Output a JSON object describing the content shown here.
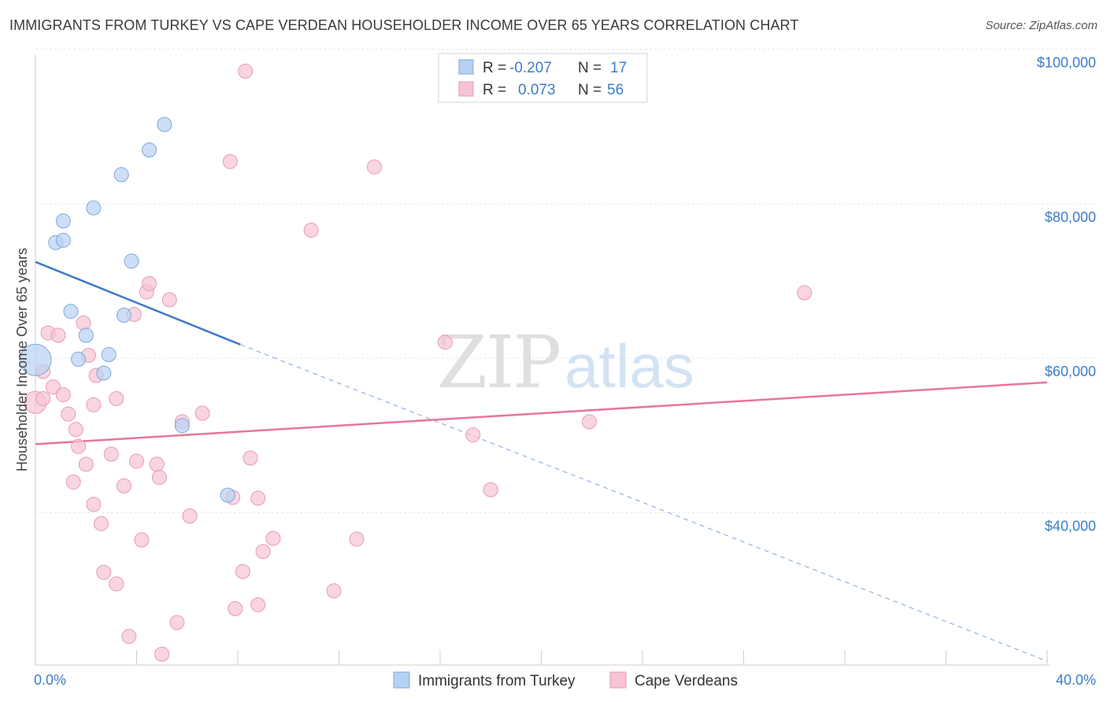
{
  "title": "IMMIGRANTS FROM TURKEY VS CAPE VERDEAN HOUSEHOLDER INCOME OVER 65 YEARS CORRELATION CHART",
  "source": "Source: ZipAtlas.com",
  "watermark": {
    "zip": "ZIP",
    "atlas": "atlas"
  },
  "colors": {
    "blue": "#3d7cc9",
    "blue_fill": "#b8d1f3",
    "pink": "#e8759a",
    "pink_fill": "#f7c3d3"
  },
  "stats": {
    "blue": {
      "r_label": "R =",
      "r": "-0.207",
      "n_label": "N =",
      "n": "17"
    },
    "pink": {
      "r_label": "R =",
      "r": "0.073",
      "n_label": "N =",
      "n": "56"
    }
  },
  "chart_data": {
    "type": "scatter",
    "title": "IMMIGRANTS FROM TURKEY VS CAPE VERDEAN HOUSEHOLDER INCOME OVER 65 YEARS CORRELATION CHART",
    "xlabel": "",
    "ylabel": "Householder Income Over 65 years",
    "xlim": [
      0,
      40
    ],
    "ylim": [
      22000,
      102000
    ],
    "x_tick_labels": [
      "0.0%",
      "40.0%"
    ],
    "y_ticks": [
      40000,
      60000,
      80000,
      100000
    ],
    "y_tick_labels": [
      "$40,000",
      "$60,000",
      "$80,000",
      "$100,000"
    ],
    "legend": [
      "Immigrants from Turkey",
      "Cape Verdeans"
    ],
    "series": [
      {
        "name": "Immigrants from Turkey",
        "points": [
          [
            0.0,
            61500
          ],
          [
            0.8,
            76700
          ],
          [
            1.1,
            77000
          ],
          [
            1.1,
            79500
          ],
          [
            2.3,
            81200
          ],
          [
            3.4,
            85500
          ],
          [
            4.5,
            88700
          ],
          [
            5.1,
            92000
          ],
          [
            3.8,
            74300
          ],
          [
            1.4,
            67800
          ],
          [
            2.0,
            64700
          ],
          [
            1.7,
            61600
          ],
          [
            2.9,
            62200
          ],
          [
            2.7,
            59800
          ],
          [
            3.5,
            67300
          ],
          [
            5.8,
            53000
          ],
          [
            7.6,
            44000
          ]
        ],
        "trend": {
          "x0": 0,
          "y0": 74200,
          "x1": 8.1,
          "y1": 63500,
          "dashed_to_x": 40,
          "dashed_to_y": 22500
        }
      },
      {
        "name": "Cape Verdeans",
        "points": [
          [
            0.0,
            56000
          ],
          [
            0.3,
            60000
          ],
          [
            0.3,
            56500
          ],
          [
            0.5,
            65000
          ],
          [
            0.7,
            58000
          ],
          [
            0.9,
            64700
          ],
          [
            1.1,
            57000
          ],
          [
            1.3,
            54500
          ],
          [
            1.5,
            45700
          ],
          [
            1.6,
            52500
          ],
          [
            1.7,
            50300
          ],
          [
            1.9,
            66300
          ],
          [
            2.0,
            48000
          ],
          [
            2.1,
            62100
          ],
          [
            2.3,
            55700
          ],
          [
            2.4,
            59500
          ],
          [
            2.3,
            42800
          ],
          [
            2.6,
            40300
          ],
          [
            2.7,
            34000
          ],
          [
            3.0,
            49300
          ],
          [
            3.2,
            56500
          ],
          [
            3.2,
            32500
          ],
          [
            3.5,
            45200
          ],
          [
            3.7,
            25700
          ],
          [
            3.9,
            67400
          ],
          [
            4.0,
            48400
          ],
          [
            4.2,
            38200
          ],
          [
            4.4,
            70300
          ],
          [
            4.5,
            71400
          ],
          [
            4.8,
            48000
          ],
          [
            4.9,
            46300
          ],
          [
            5.0,
            23400
          ],
          [
            5.3,
            69300
          ],
          [
            5.6,
            27500
          ],
          [
            5.8,
            53500
          ],
          [
            6.1,
            41300
          ],
          [
            6.6,
            54600
          ],
          [
            7.8,
            43700
          ],
          [
            7.7,
            87200
          ],
          [
            7.9,
            29300
          ],
          [
            8.2,
            34100
          ],
          [
            8.5,
            48800
          ],
          [
            8.8,
            29800
          ],
          [
            8.8,
            43600
          ],
          [
            8.3,
            98900
          ],
          [
            9.0,
            36700
          ],
          [
            9.4,
            38400
          ],
          [
            10.9,
            78300
          ],
          [
            11.8,
            31600
          ],
          [
            12.7,
            38300
          ],
          [
            13.4,
            86500
          ],
          [
            16.2,
            63800
          ],
          [
            17.3,
            51800
          ],
          [
            18.0,
            44700
          ],
          [
            21.9,
            53500
          ],
          [
            30.4,
            70200
          ]
        ],
        "trend": {
          "x0": 0,
          "y0": 50600,
          "x1": 40,
          "y1": 58600
        }
      }
    ]
  }
}
